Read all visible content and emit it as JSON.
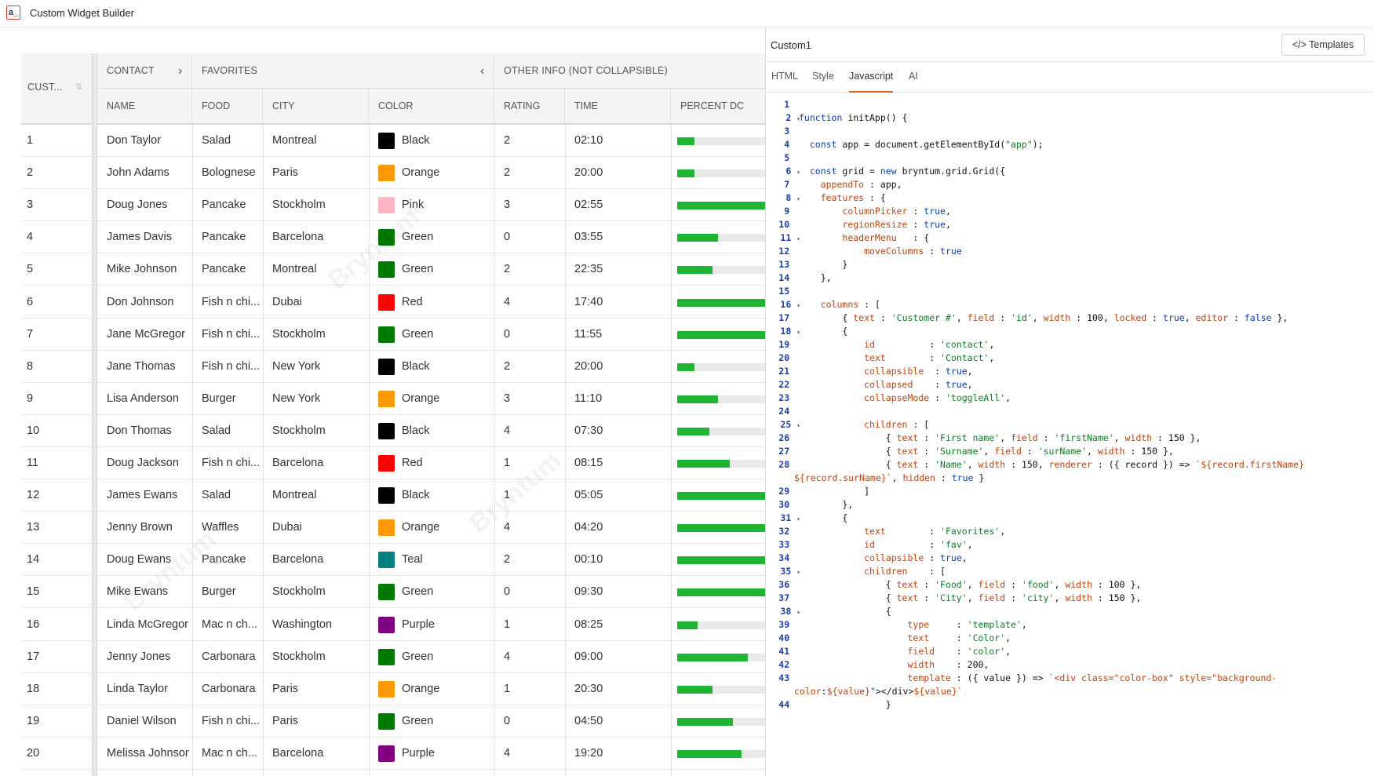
{
  "app": {
    "title": "Custom Widget Builder",
    "logo_text": "a_"
  },
  "grid": {
    "group_headers": [
      {
        "label": "CUST..."
      },
      {
        "label": "CONTACT"
      },
      {
        "label": "FAVORITES"
      },
      {
        "label": "OTHER INFO (NOT COLLAPSIBLE)"
      }
    ],
    "columns": [
      "NAME",
      "FOOD",
      "CITY",
      "COLOR",
      "RATING",
      "TIME",
      "PERCENT DC"
    ],
    "colors": {
      "Black": "#000000",
      "Orange": "#ff9900",
      "Pink": "#ffb6c1",
      "Green": "#007a00",
      "Red": "#ff0000",
      "Teal": "#008080",
      "Purple": "#800080"
    },
    "rows": [
      {
        "id": "1",
        "name": "Don Taylor",
        "food": "Salad",
        "city": "Montreal",
        "color": "Black",
        "rating": "2",
        "time": "02:10",
        "percent": 0.2
      },
      {
        "id": "2",
        "name": "John Adams",
        "food": "Bolognese",
        "city": "Paris",
        "color": "Orange",
        "rating": "2",
        "time": "20:00",
        "percent": 0.2
      },
      {
        "id": "3",
        "name": "Doug Jones",
        "food": "Pancake",
        "city": "Stockholm",
        "color": "Pink",
        "rating": "3",
        "time": "02:55",
        "percent": 1.0
      },
      {
        "id": "4",
        "name": "James Davis",
        "food": "Pancake",
        "city": "Barcelona",
        "color": "Green",
        "rating": "0",
        "time": "03:55",
        "percent": 0.46
      },
      {
        "id": "5",
        "name": "Mike Johnson",
        "food": "Pancake",
        "city": "Montreal",
        "color": "Green",
        "rating": "2",
        "time": "22:35",
        "percent": 0.4
      },
      {
        "id": "6",
        "name": "Don Johnson",
        "food": "Fish n chi...",
        "city": "Dubai",
        "color": "Red",
        "rating": "4",
        "time": "17:40",
        "percent": 1.0
      },
      {
        "id": "7",
        "name": "Jane McGregor",
        "food": "Fish n chi...",
        "city": "Stockholm",
        "color": "Green",
        "rating": "0",
        "time": "11:55",
        "percent": 1.0
      },
      {
        "id": "8",
        "name": "Jane Thomas",
        "food": "Fish n chi...",
        "city": "New York",
        "color": "Black",
        "rating": "2",
        "time": "20:00",
        "percent": 0.2
      },
      {
        "id": "9",
        "name": "Lisa Anderson",
        "food": "Burger",
        "city": "New York",
        "color": "Orange",
        "rating": "3",
        "time": "11:10",
        "percent": 0.46
      },
      {
        "id": "10",
        "name": "Don Thomas",
        "food": "Salad",
        "city": "Stockholm",
        "color": "Black",
        "rating": "4",
        "time": "07:30",
        "percent": 0.37
      },
      {
        "id": "11",
        "name": "Doug Jackson",
        "food": "Fish n chi...",
        "city": "Barcelona",
        "color": "Red",
        "rating": "1",
        "time": "08:15",
        "percent": 0.6
      },
      {
        "id": "12",
        "name": "James Ewans",
        "food": "Salad",
        "city": "Montreal",
        "color": "Black",
        "rating": "1",
        "time": "05:05",
        "percent": 1.0
      },
      {
        "id": "13",
        "name": "Jenny Brown",
        "food": "Waffles",
        "city": "Dubai",
        "color": "Orange",
        "rating": "4",
        "time": "04:20",
        "percent": 1.0
      },
      {
        "id": "14",
        "name": "Doug Ewans",
        "food": "Pancake",
        "city": "Barcelona",
        "color": "Teal",
        "rating": "2",
        "time": "00:10",
        "percent": 1.0
      },
      {
        "id": "15",
        "name": "Mike Ewans",
        "food": "Burger",
        "city": "Stockholm",
        "color": "Green",
        "rating": "0",
        "time": "09:30",
        "percent": 1.0
      },
      {
        "id": "16",
        "name": "Linda McGregor",
        "food": "Mac n ch...",
        "city": "Washington",
        "color": "Purple",
        "rating": "1",
        "time": "08:25",
        "percent": 0.23
      },
      {
        "id": "17",
        "name": "Jenny Jones",
        "food": "Carbonara",
        "city": "Stockholm",
        "color": "Green",
        "rating": "4",
        "time": "09:00",
        "percent": 0.8
      },
      {
        "id": "18",
        "name": "Linda Taylor",
        "food": "Carbonara",
        "city": "Paris",
        "color": "Orange",
        "rating": "1",
        "time": "20:30",
        "percent": 0.4
      },
      {
        "id": "19",
        "name": "Daniel Wilson",
        "food": "Fish n chi...",
        "city": "Paris",
        "color": "Green",
        "rating": "0",
        "time": "04:50",
        "percent": 0.63
      },
      {
        "id": "20",
        "name": "Melissa Johnson",
        "food": "Mac n ch...",
        "city": "Barcelona",
        "color": "Purple",
        "rating": "4",
        "time": "19:20",
        "percent": 0.73
      }
    ]
  },
  "editor": {
    "title": "Custom1",
    "templates_label": "Templates",
    "tabs": [
      "HTML",
      "Style",
      "Javascript",
      "AI"
    ],
    "active_tab": "Javascript",
    "lines": [
      {
        "n": "1",
        "t": ""
      },
      {
        "n": "2",
        "f": true,
        "t": "function initApp() {"
      },
      {
        "n": "3",
        "t": ""
      },
      {
        "n": "4",
        "t": "  const app = document.getElementById(\"app\");"
      },
      {
        "n": "5",
        "t": ""
      },
      {
        "n": "6",
        "f": true,
        "t": "  const grid = new bryntum.grid.Grid({"
      },
      {
        "n": "7",
        "t": "    appendTo : app,"
      },
      {
        "n": "8",
        "f": true,
        "t": "    features : {"
      },
      {
        "n": "9",
        "t": "        columnPicker : true,"
      },
      {
        "n": "10",
        "t": "        regionResize : true,"
      },
      {
        "n": "11",
        "f": true,
        "t": "        headerMenu   : {"
      },
      {
        "n": "12",
        "t": "            moveColumns : true"
      },
      {
        "n": "13",
        "t": "        }"
      },
      {
        "n": "14",
        "t": "    },"
      },
      {
        "n": "15",
        "t": ""
      },
      {
        "n": "16",
        "f": true,
        "t": "    columns : ["
      },
      {
        "n": "17",
        "t": "        { text : 'Customer #', field : 'id', width : 100, locked : true, editor : false },"
      },
      {
        "n": "18",
        "f": true,
        "t": "        {"
      },
      {
        "n": "19",
        "t": "            id          : 'contact',"
      },
      {
        "n": "20",
        "t": "            text        : 'Contact',"
      },
      {
        "n": "21",
        "t": "            collapsible  : true,"
      },
      {
        "n": "22",
        "t": "            collapsed    : true,"
      },
      {
        "n": "23",
        "t": "            collapseMode : 'toggleAll',"
      },
      {
        "n": "24",
        "t": ""
      },
      {
        "n": "25",
        "f": true,
        "t": "            children : ["
      },
      {
        "n": "26",
        "t": "                { text : 'First name', field : 'firstName', width : 150 },"
      },
      {
        "n": "27",
        "t": "                { text : 'Surname', field : 'surName', width : 150 },"
      },
      {
        "n": "28",
        "t": "                { text : 'Name', width : 150, renderer : ({ record }) => `${record.firstName}"
      },
      {
        "n": "",
        "t": "${record.surName}`, hidden : true }",
        "wrap": true
      },
      {
        "n": "29",
        "t": "            ]"
      },
      {
        "n": "30",
        "t": "        },"
      },
      {
        "n": "31",
        "f": true,
        "t": "        {"
      },
      {
        "n": "32",
        "t": "            text        : 'Favorites',"
      },
      {
        "n": "33",
        "t": "            id          : 'fav',"
      },
      {
        "n": "34",
        "t": "            collapsible : true,"
      },
      {
        "n": "35",
        "f": true,
        "t": "            children    : ["
      },
      {
        "n": "36",
        "t": "                { text : 'Food', field : 'food', width : 100 },"
      },
      {
        "n": "37",
        "t": "                { text : 'City', field : 'city', width : 150 },"
      },
      {
        "n": "38",
        "f": true,
        "t": "                {"
      },
      {
        "n": "39",
        "t": "                    type     : 'template',"
      },
      {
        "n": "40",
        "t": "                    text     : 'Color',"
      },
      {
        "n": "41",
        "t": "                    field    : 'color',"
      },
      {
        "n": "42",
        "t": "                    width    : 200,"
      },
      {
        "n": "43",
        "t": "                    template : ({ value }) => `<div class=\"color-box\" style=\"background-"
      },
      {
        "n": "",
        "t": "color:${value}\"></div>${value}`",
        "wrap": true
      },
      {
        "n": "44",
        "t": "                }"
      }
    ]
  }
}
